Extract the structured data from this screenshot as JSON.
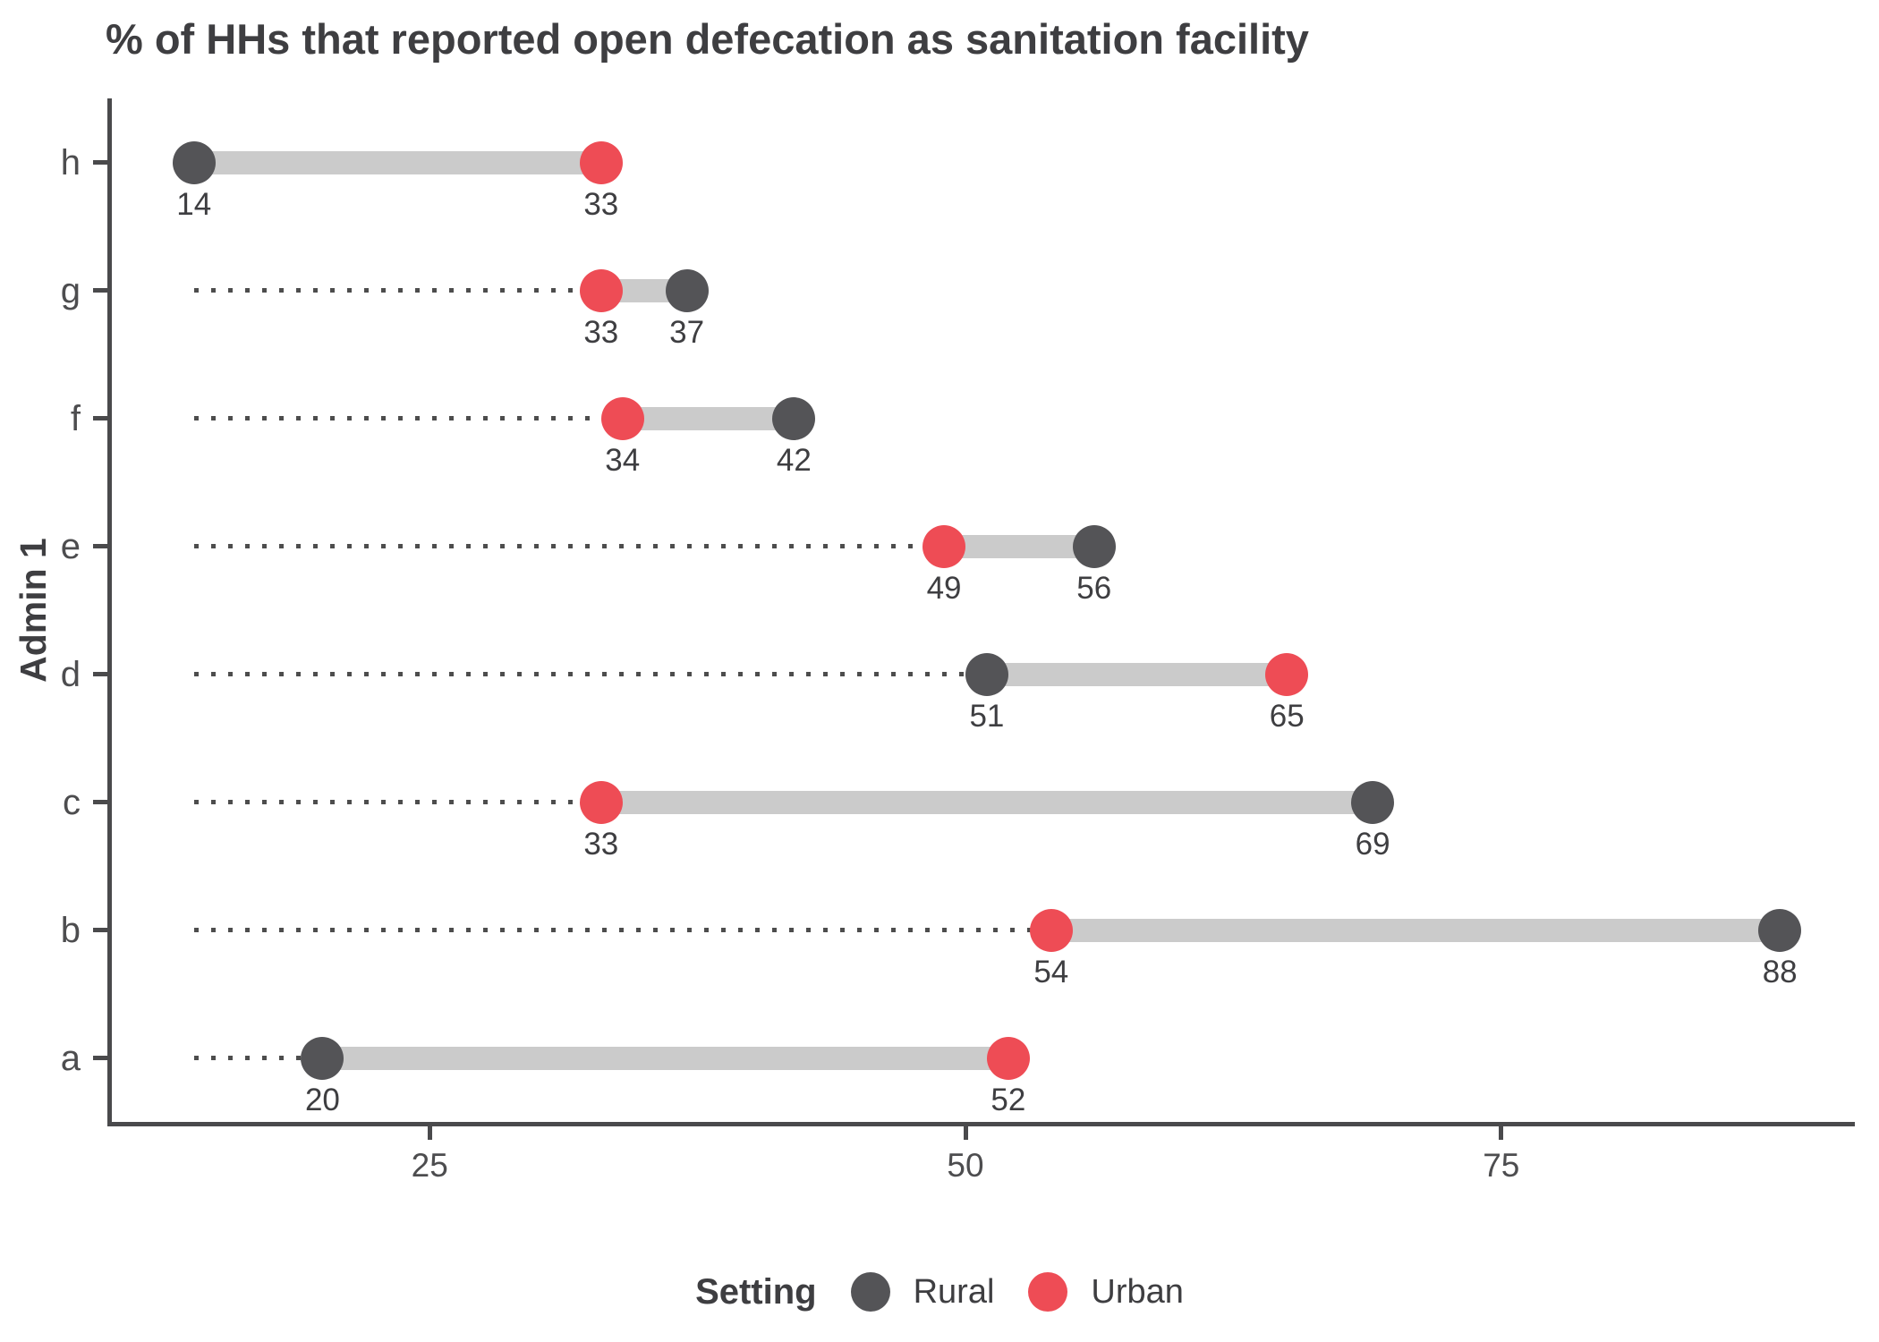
{
  "chart_data": {
    "type": "dumbbell",
    "title": "% of HHs that reported open defecation as sanitation facility",
    "ylabel": "Admin 1",
    "legend_title": "Setting",
    "legend_position": "bottom",
    "grid": false,
    "categories": [
      "h",
      "g",
      "f",
      "e",
      "d",
      "c",
      "b",
      "a"
    ],
    "series": [
      {
        "name": "Rural",
        "color": "#545457",
        "values": [
          14,
          37,
          42,
          56,
          51,
          69,
          88,
          20
        ]
      },
      {
        "name": "Urban",
        "color": "#ee4c55",
        "values": [
          33,
          33,
          34,
          49,
          65,
          33,
          54,
          52
        ]
      }
    ],
    "x_ticks": [
      25,
      50,
      75
    ],
    "x_domain": [
      10.17,
      91.5
    ],
    "leader_start": 14,
    "colors": {
      "rural": "#545457",
      "urban": "#ee4c55",
      "connector_bar": "#cbcbcb",
      "leader_dots": "#4d4d4d",
      "axis": "#4a4a4c",
      "text": "#3e3e41"
    }
  }
}
